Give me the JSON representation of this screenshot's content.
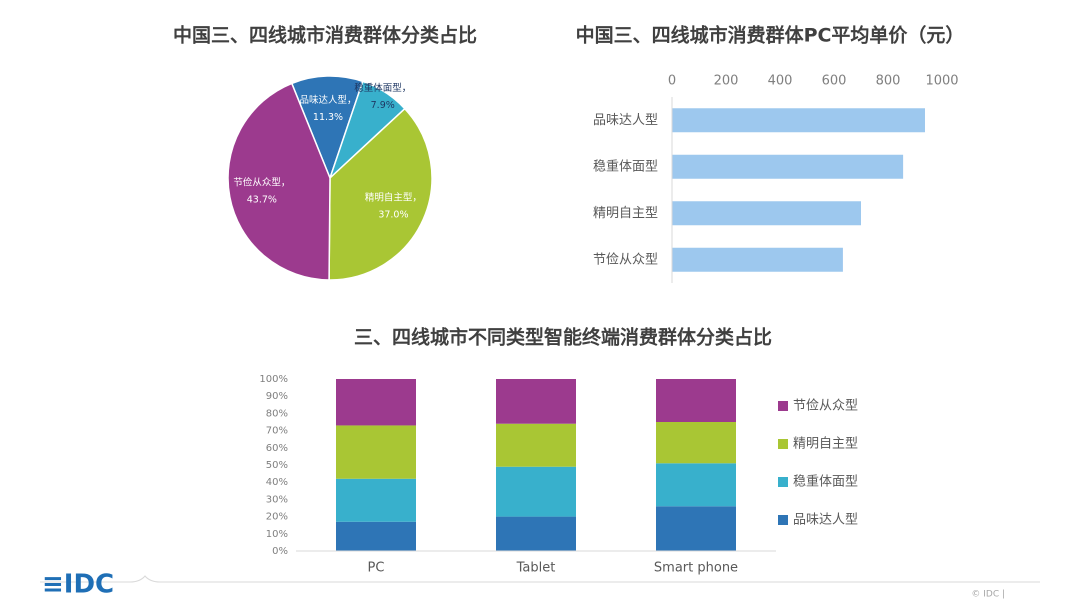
{
  "chart_data": [
    {
      "type": "pie",
      "title": "中国三、四线城市消费群体分类占比",
      "categories": [
        "品味达人型，",
        "稳重体面型，",
        "精明自主型，",
        "节俭从众型，"
      ],
      "values": [
        11.3,
        7.9,
        37.0,
        43.7
      ],
      "value_labels": [
        "11.3%",
        "7.9%",
        "37.0%",
        "43.7%"
      ],
      "colors": [
        "#2e75b6",
        "#38b0cc",
        "#a9c634",
        "#9c3a8e"
      ]
    },
    {
      "type": "barh",
      "title": "中国三、四线城市消费群体PC平均单价（元）",
      "categories": [
        "品味达人型",
        "稳重体面型",
        "精明自主型",
        "节俭从众型"
      ],
      "values": [
        937,
        856,
        700,
        633
      ],
      "color": "#9dc8ee",
      "xlim": [
        0,
        1000
      ],
      "xticks": [
        0,
        200,
        400,
        600,
        800,
        1000
      ],
      "grid": false
    },
    {
      "type": "stacked_bar",
      "title": "三、四线城市不同类型智能终端消费群体分类占比",
      "categories": [
        "PC",
        "Tablet",
        "Smart phone"
      ],
      "series": [
        {
          "name": "品味达人型",
          "color": "#2e75b6",
          "values": [
            17,
            20,
            26
          ]
        },
        {
          "name": "稳重体面型",
          "color": "#38b0cc",
          "values": [
            25,
            29,
            25
          ]
        },
        {
          "name": "精明自主型",
          "color": "#a9c634",
          "values": [
            31,
            25,
            24
          ]
        },
        {
          "name": "节俭从众型",
          "color": "#9c3a8e",
          "values": [
            27,
            26,
            25
          ]
        }
      ],
      "ylim": [
        0,
        100
      ],
      "yticks": [
        {
          "value": 0,
          "label": "0%"
        },
        {
          "value": 10,
          "label": "10%"
        },
        {
          "value": 20,
          "label": "20%"
        },
        {
          "value": 30,
          "label": "30%"
        },
        {
          "value": 40,
          "label": "40%"
        },
        {
          "value": 50,
          "label": "50%"
        },
        {
          "value": 60,
          "label": "60%"
        },
        {
          "value": 70,
          "label": "70%"
        },
        {
          "value": 80,
          "label": "80%"
        },
        {
          "value": 90,
          "label": "90%"
        },
        {
          "value": 100,
          "label": "100%"
        }
      ],
      "legend": "right",
      "grid": false
    }
  ],
  "footer": {
    "logo": "≡IDC",
    "copyright": "© IDC |"
  }
}
